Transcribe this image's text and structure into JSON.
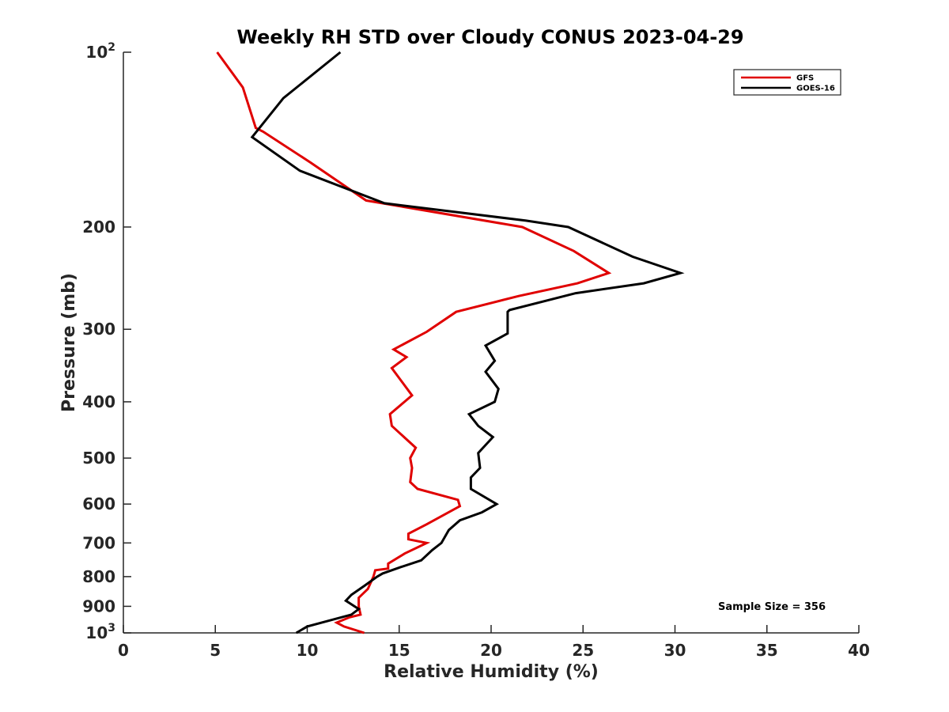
{
  "chart_data": {
    "type": "line",
    "title": "Weekly RH STD over Cloudy CONUS 2023-04-29",
    "xlabel": "Relative Humidity (%)",
    "ylabel": "Pressure (mb)",
    "xlim": [
      0,
      40
    ],
    "ylim": [
      100,
      1000
    ],
    "y_scale": "log",
    "y_reversed": true,
    "grid": false,
    "legend_position": "top-right",
    "x_ticks": [
      "0",
      "5",
      "10",
      "15",
      "20",
      "25",
      "30",
      "35",
      "40"
    ],
    "y_ticks": [
      {
        "value": 100,
        "base": "10",
        "exp": "2"
      },
      {
        "value": 200,
        "label": "200"
      },
      {
        "value": 300,
        "label": "300"
      },
      {
        "value": 400,
        "label": "400"
      },
      {
        "value": 500,
        "label": "500"
      },
      {
        "value": 600,
        "label": "600"
      },
      {
        "value": 700,
        "label": "700"
      },
      {
        "value": 800,
        "label": "800"
      },
      {
        "value": 900,
        "label": "900"
      },
      {
        "value": 1000,
        "base": "10",
        "exp": "3"
      }
    ],
    "annotation": "Sample Size = 356",
    "series": [
      {
        "name": "GFS",
        "color": "#e00000",
        "points": [
          [
            5.1,
            100
          ],
          [
            6.5,
            115
          ],
          [
            7.2,
            135
          ],
          [
            7.6,
            137
          ],
          [
            10.2,
            155
          ],
          [
            13.2,
            180
          ],
          [
            21.7,
            200
          ],
          [
            24.5,
            220
          ],
          [
            26.4,
            240
          ],
          [
            24.7,
            250
          ],
          [
            21.5,
            263
          ],
          [
            18.1,
            280
          ],
          [
            16.5,
            303
          ],
          [
            14.7,
            325
          ],
          [
            15.4,
            335
          ],
          [
            14.6,
            350
          ],
          [
            15.7,
            390
          ],
          [
            14.5,
            420
          ],
          [
            14.6,
            440
          ],
          [
            15.9,
            480
          ],
          [
            15.6,
            500
          ],
          [
            15.7,
            520
          ],
          [
            15.6,
            550
          ],
          [
            16.0,
            565
          ],
          [
            18.2,
            590
          ],
          [
            18.3,
            605
          ],
          [
            16.5,
            650
          ],
          [
            15.5,
            675
          ],
          [
            15.5,
            690
          ],
          [
            16.5,
            700
          ],
          [
            15.3,
            730
          ],
          [
            14.4,
            760
          ],
          [
            14.4,
            775
          ],
          [
            13.7,
            780
          ],
          [
            13.6,
            800
          ],
          [
            13.3,
            840
          ],
          [
            12.8,
            870
          ],
          [
            12.8,
            900
          ],
          [
            12.9,
            930
          ],
          [
            12.3,
            940
          ],
          [
            11.6,
            960
          ],
          [
            12.0,
            975
          ],
          [
            13.1,
            1000
          ]
        ]
      },
      {
        "name": "GOES-16",
        "color": "#000000",
        "points": [
          [
            11.8,
            100
          ],
          [
            8.7,
            120
          ],
          [
            7.0,
            140
          ],
          [
            9.6,
            160
          ],
          [
            14.2,
            182
          ],
          [
            21.9,
            195
          ],
          [
            24.2,
            200
          ],
          [
            27.7,
            225
          ],
          [
            30.3,
            240
          ],
          [
            28.3,
            250
          ],
          [
            24.6,
            260
          ],
          [
            21.0,
            278
          ],
          [
            20.9,
            280
          ],
          [
            20.9,
            305
          ],
          [
            19.7,
            320
          ],
          [
            20.2,
            340
          ],
          [
            19.7,
            355
          ],
          [
            20.4,
            380
          ],
          [
            20.2,
            400
          ],
          [
            18.8,
            420
          ],
          [
            19.3,
            440
          ],
          [
            20.1,
            460
          ],
          [
            19.3,
            490
          ],
          [
            19.4,
            520
          ],
          [
            18.9,
            540
          ],
          [
            18.9,
            565
          ],
          [
            20.3,
            600
          ],
          [
            19.5,
            620
          ],
          [
            18.3,
            640
          ],
          [
            17.7,
            665
          ],
          [
            17.3,
            700
          ],
          [
            16.8,
            720
          ],
          [
            16.2,
            750
          ],
          [
            15.1,
            770
          ],
          [
            14.1,
            790
          ],
          [
            13.8,
            800
          ],
          [
            13.1,
            830
          ],
          [
            12.4,
            860
          ],
          [
            12.1,
            880
          ],
          [
            12.8,
            910
          ],
          [
            12.4,
            930
          ],
          [
            10.0,
            975
          ],
          [
            9.4,
            1000
          ]
        ]
      }
    ]
  }
}
